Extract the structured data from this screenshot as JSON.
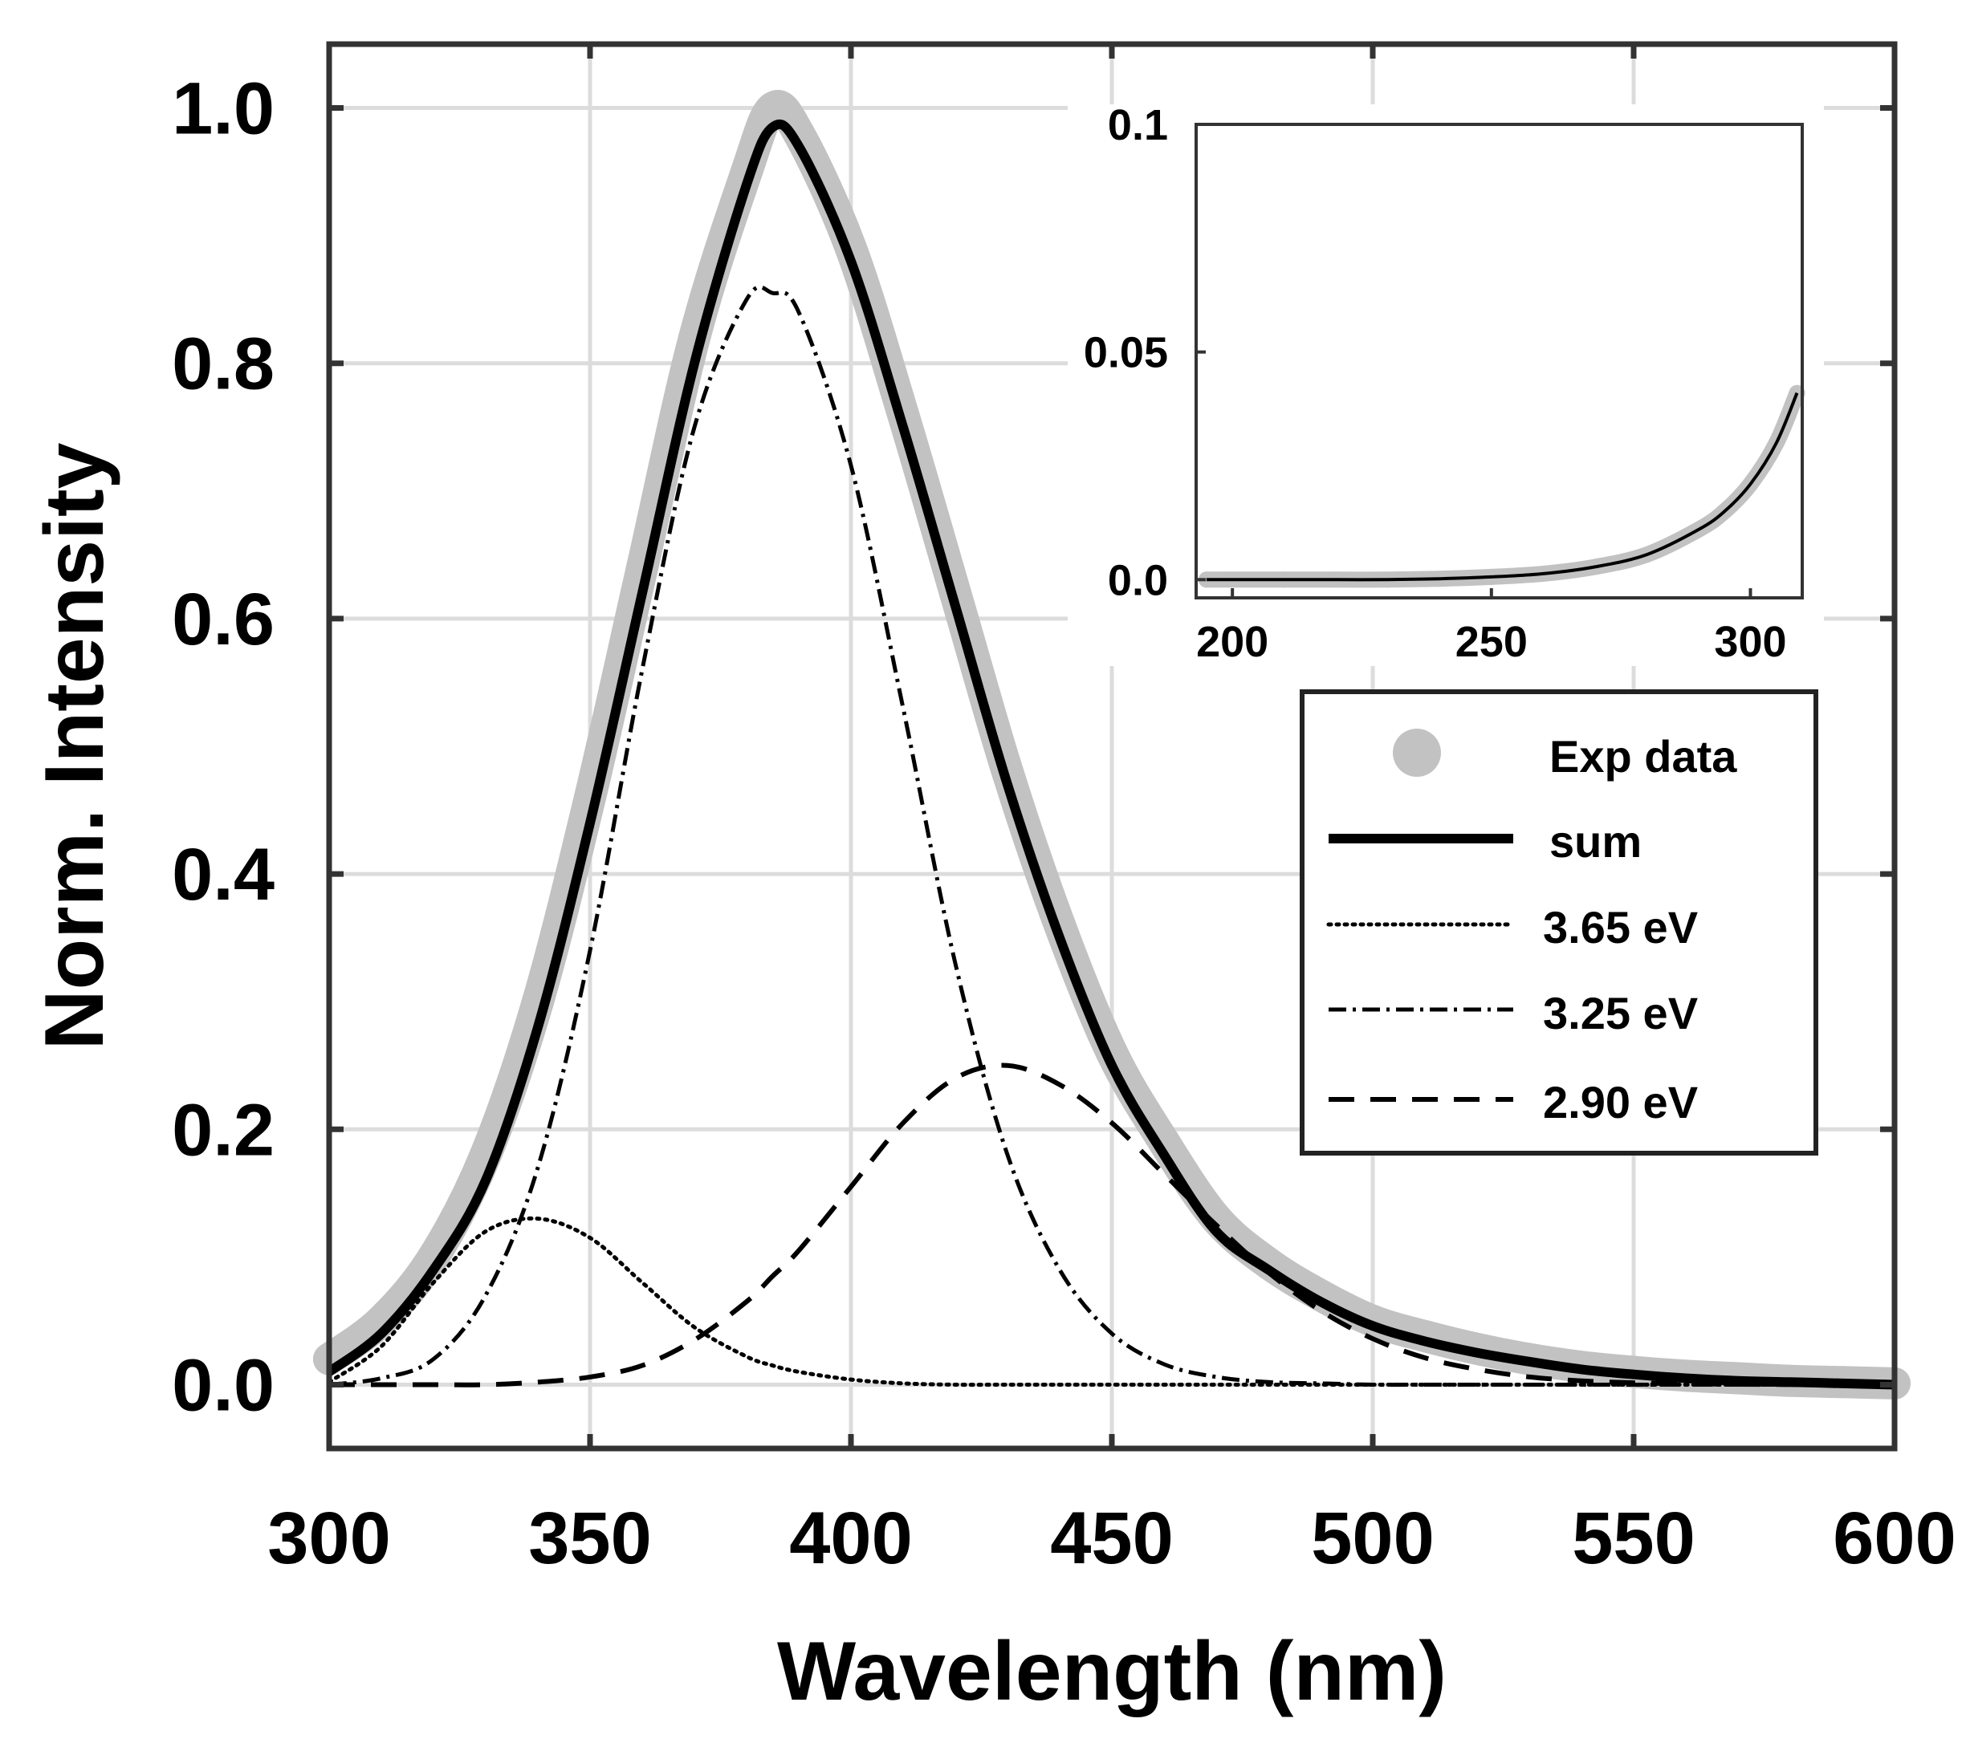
{
  "chart_data": [
    {
      "type": "line",
      "title": "",
      "xlabel": "Wavelength (nm)",
      "ylabel": "Norm. Intensity",
      "xlim": [
        300,
        600
      ],
      "ylim": [
        -0.05,
        1.05
      ],
      "xticks": [
        300,
        350,
        400,
        450,
        500,
        550,
        600
      ],
      "xtick_labels": [
        "300",
        "350",
        "400",
        "450",
        "500",
        "550",
        "600"
      ],
      "yticks": [
        0.0,
        0.2,
        0.4,
        0.6,
        0.8,
        1.0
      ],
      "ytick_labels": [
        "0.0",
        "0.2",
        "0.4",
        "0.6",
        "0.8",
        "1.0"
      ],
      "grid": true,
      "legend_position": "right",
      "x": [
        300,
        310,
        320,
        330,
        340,
        350,
        360,
        370,
        380,
        385,
        390,
        400,
        410,
        420,
        430,
        440,
        450,
        460,
        470,
        480,
        490,
        500,
        510,
        520,
        530,
        540,
        550,
        560,
        570,
        580,
        590,
        600
      ],
      "series": [
        {
          "name": "Exp data",
          "style": "gray-dots",
          "values": [
            0.02,
            0.05,
            0.1,
            0.18,
            0.3,
            0.46,
            0.64,
            0.82,
            0.95,
            1.0,
            0.98,
            0.89,
            0.76,
            0.62,
            0.48,
            0.36,
            0.26,
            0.19,
            0.13,
            0.095,
            0.07,
            0.05,
            0.038,
            0.028,
            0.02,
            0.014,
            0.01,
            0.007,
            0.005,
            0.003,
            0.002,
            0.001
          ]
        },
        {
          "name": "sum",
          "style": "solid-thick",
          "values": [
            0.01,
            0.04,
            0.09,
            0.16,
            0.28,
            0.44,
            0.62,
            0.8,
            0.94,
            0.985,
            0.97,
            0.88,
            0.75,
            0.61,
            0.47,
            0.35,
            0.25,
            0.18,
            0.12,
            0.09,
            0.065,
            0.046,
            0.034,
            0.025,
            0.018,
            0.012,
            0.008,
            0.005,
            0.003,
            0.002,
            0.001,
            0.0
          ]
        },
        {
          "name": "3.65 eV",
          "style": "dotted",
          "values": [
            0.002,
            0.03,
            0.08,
            0.12,
            0.13,
            0.115,
            0.08,
            0.045,
            0.022,
            0.015,
            0.01,
            0.004,
            0.001,
            0.0,
            0.0,
            0.0,
            0.0,
            0.0,
            0.0,
            0.0,
            0.0,
            0.0,
            0.0,
            0.0,
            0.0,
            0.0,
            0.0,
            0.0,
            0.0,
            0.0,
            0.0,
            0.0
          ]
        },
        {
          "name": "3.25 eV",
          "style": "dash-dot",
          "values": [
            0.0,
            0.005,
            0.02,
            0.07,
            0.17,
            0.34,
            0.56,
            0.75,
            0.85,
            0.855,
            0.84,
            0.72,
            0.53,
            0.33,
            0.18,
            0.09,
            0.04,
            0.016,
            0.006,
            0.002,
            0.001,
            0.0,
            0.0,
            0.0,
            0.0,
            0.0,
            0.0,
            0.0,
            0.0,
            0.0,
            0.0,
            0.0
          ]
        },
        {
          "name": "2.90 eV",
          "style": "dashed",
          "values": [
            0.0,
            0.0,
            0.0,
            0.0,
            0.002,
            0.006,
            0.015,
            0.035,
            0.065,
            0.085,
            0.105,
            0.155,
            0.205,
            0.24,
            0.25,
            0.235,
            0.205,
            0.165,
            0.125,
            0.088,
            0.058,
            0.036,
            0.021,
            0.012,
            0.006,
            0.003,
            0.0015,
            0.0007,
            0.0003,
            0.0001,
            0.0,
            0.0
          ]
        }
      ]
    },
    {
      "type": "line",
      "title": "",
      "xlabel": "",
      "ylabel": "",
      "xlim": [
        193,
        310
      ],
      "ylim": [
        -0.004,
        0.1
      ],
      "xticks": [
        200,
        250,
        300
      ],
      "xtick_labels": [
        "200",
        "250",
        "300"
      ],
      "yticks": [
        0.0,
        0.05,
        0.1
      ],
      "ytick_labels": [
        "0.0",
        "0.05",
        "0.1"
      ],
      "grid": false,
      "x": [
        195,
        200,
        210,
        220,
        230,
        240,
        250,
        260,
        270,
        280,
        290,
        295,
        300,
        305,
        309
      ],
      "series": [
        {
          "name": "Exp data",
          "style": "gray-dots",
          "values": [
            0.0,
            0.0,
            0.0,
            0.0,
            0.0,
            0.0002,
            0.0006,
            0.0013,
            0.0028,
            0.0055,
            0.011,
            0.015,
            0.021,
            0.03,
            0.041
          ]
        },
        {
          "name": "sum",
          "style": "solid-thin",
          "values": [
            0.0,
            0.0,
            0.0,
            0.0,
            0.0,
            0.0002,
            0.0006,
            0.0013,
            0.0028,
            0.0055,
            0.011,
            0.015,
            0.021,
            0.03,
            0.041
          ]
        }
      ]
    }
  ]
}
